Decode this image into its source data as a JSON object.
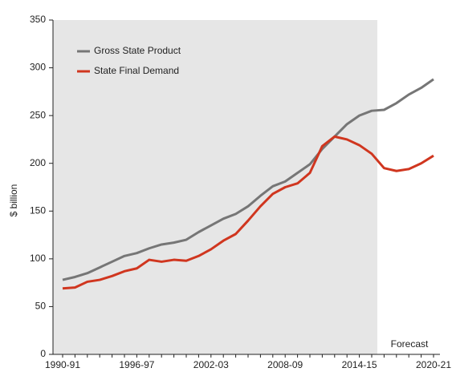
{
  "chart_data": {
    "type": "line",
    "y_label": "$ billion",
    "annotation": "Forecast",
    "categories": [
      "1990-91",
      null,
      null,
      null,
      null,
      null,
      "1996-97",
      null,
      null,
      null,
      null,
      null,
      "2002-03",
      null,
      null,
      null,
      null,
      null,
      "2008-09",
      null,
      null,
      null,
      null,
      null,
      "2014-15",
      null,
      null,
      null,
      null,
      null,
      "2020-21"
    ],
    "series": [
      {
        "name": "Gross State Product",
        "color": "#767676",
        "values": [
          78,
          81,
          85,
          91,
          97,
          103,
          106,
          111,
          115,
          117,
          120,
          128,
          135,
          142,
          147,
          155,
          166,
          176,
          181,
          190,
          199,
          215,
          228,
          241,
          250,
          255,
          256,
          263,
          272,
          279,
          288
        ]
      },
      {
        "name": "State Final Demand",
        "color": "#d0361f",
        "values": [
          69,
          70,
          76,
          78,
          82,
          87,
          90,
          99,
          97,
          99,
          98,
          103,
          110,
          119,
          126,
          140,
          155,
          168,
          175,
          179,
          190,
          218,
          228,
          225,
          219,
          210,
          195,
          192,
          194,
          200,
          208
        ]
      }
    ],
    "ylim": [
      0,
      350
    ],
    "yticks": [
      0,
      50,
      100,
      150,
      200,
      250,
      300,
      350
    ],
    "grid": false,
    "legend": "upper left"
  }
}
